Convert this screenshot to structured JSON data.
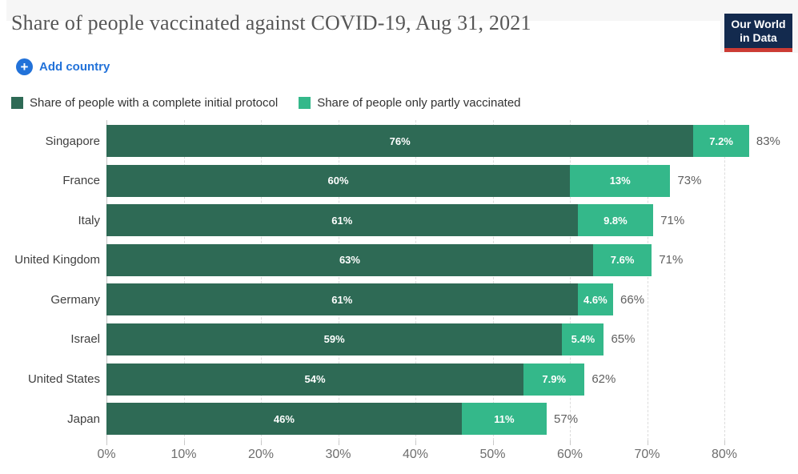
{
  "header": {
    "title": "Share of people vaccinated against COVID-19, Aug 31, 2021",
    "logo": {
      "line1": "Our World",
      "line2": "in Data",
      "bg_color": "#132a4e",
      "accent_color": "#cc3b34"
    }
  },
  "toolbar": {
    "add_country_label": "Add country",
    "accent_blue": "#2272d9"
  },
  "chart_data": {
    "type": "bar",
    "orientation": "horizontal",
    "stacked": true,
    "title": "Share of people vaccinated against COVID-19, Aug 31, 2021",
    "categories": [
      "Singapore",
      "France",
      "Italy",
      "United Kingdom",
      "Germany",
      "Israel",
      "United States",
      "Japan"
    ],
    "series": [
      {
        "name": "Share of people with a complete initial protocol",
        "color": "#2e6a55",
        "values": [
          76,
          60,
          61,
          63,
          61,
          59,
          54,
          46
        ],
        "labels": [
          "76%",
          "60%",
          "61%",
          "63%",
          "61%",
          "59%",
          "54%",
          "46%"
        ]
      },
      {
        "name": "Share of people only partly vaccinated",
        "color": "#34b88a",
        "values": [
          7.2,
          13,
          9.8,
          7.6,
          4.6,
          5.4,
          7.9,
          11
        ],
        "labels": [
          "7.2%",
          "13%",
          "9.8%",
          "7.6%",
          "4.6%",
          "5.4%",
          "7.9%",
          "11%"
        ]
      }
    ],
    "totals": [
      "83%",
      "73%",
      "71%",
      "71%",
      "66%",
      "65%",
      "62%",
      "57%"
    ],
    "x_ticks": [
      "0%",
      "10%",
      "20%",
      "30%",
      "40%",
      "50%",
      "60%",
      "70%",
      "80%"
    ],
    "xlim": [
      0,
      86.4
    ],
    "xlabel": "",
    "ylabel": "",
    "grid": "vertical-dashed",
    "legend_position": "top-left"
  }
}
